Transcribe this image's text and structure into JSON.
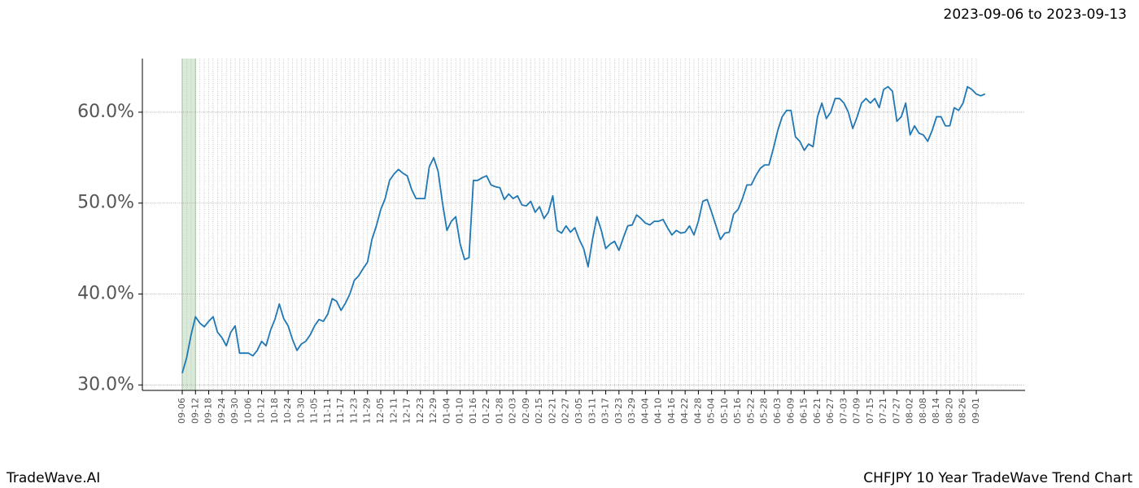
{
  "chart_data": {
    "type": "line",
    "title": "CHFJPY 10 Year TradeWave Trend Chart",
    "date_range": "2023-09-06 to 2023-09-13",
    "brand": "TradeWave.AI",
    "categories": [
      "09-06",
      null,
      null,
      "09-12",
      null,
      null,
      "09-18",
      null,
      null,
      "09-24",
      null,
      null,
      "09-30",
      null,
      null,
      "10-06",
      null,
      null,
      "10-12",
      null,
      null,
      "10-18",
      null,
      null,
      "10-24",
      null,
      null,
      "10-30",
      null,
      null,
      "11-05",
      null,
      null,
      "11-11",
      null,
      null,
      "11-17",
      null,
      null,
      "11-23",
      null,
      null,
      "11-29",
      null,
      null,
      "12-05",
      null,
      null,
      "12-11",
      null,
      null,
      "12-17",
      null,
      null,
      "12-23",
      null,
      null,
      "12-29",
      null,
      null,
      "01-04",
      null,
      null,
      "01-10",
      null,
      null,
      "01-16",
      null,
      null,
      "01-22",
      null,
      null,
      "01-28",
      null,
      null,
      "02-03",
      null,
      null,
      "02-09",
      null,
      null,
      "02-15",
      null,
      null,
      "02-21",
      null,
      null,
      "02-27",
      null,
      null,
      "03-05",
      null,
      null,
      "03-11",
      null,
      null,
      "03-17",
      null,
      null,
      "03-23",
      null,
      null,
      "03-29",
      null,
      null,
      "04-04",
      null,
      null,
      "04-10",
      null,
      null,
      "04-16",
      null,
      null,
      "04-22",
      null,
      null,
      "04-28",
      null,
      null,
      "05-04",
      null,
      null,
      "05-10",
      null,
      null,
      "05-16",
      null,
      null,
      "05-22",
      null,
      null,
      "05-28",
      null,
      null,
      "06-03",
      null,
      null,
      "06-09",
      null,
      null,
      "06-15",
      null,
      null,
      "06-21",
      null,
      null,
      "06-27",
      null,
      null,
      "07-03",
      null,
      null,
      "07-09",
      null,
      null,
      "07-15",
      null,
      null,
      "07-21",
      null,
      null,
      "07-27",
      null,
      null,
      "08-02",
      null,
      null,
      "08-08",
      null,
      null,
      "08-14",
      null,
      null,
      "08-20",
      null,
      null,
      "08-26",
      null,
      null,
      "09-01",
      null,
      null
    ],
    "series": [
      {
        "color": "#1f77b4",
        "values": [
          31.3,
          33,
          35.5,
          37.5,
          36.8,
          36.4,
          37,
          37.5,
          35.8,
          35.2,
          34.3,
          35.8,
          36.5,
          33.5,
          33.5,
          33.5,
          33.2,
          33.8,
          34.8,
          34.3,
          36,
          37.2,
          38.9,
          37.3,
          36.5,
          35,
          33.8,
          34.5,
          34.8,
          35.5,
          36.5,
          37.2,
          37,
          37.8,
          39.5,
          39.2,
          38.2,
          39,
          40,
          41.5,
          42,
          42.8,
          43.5,
          46,
          47.5,
          49.3,
          50.5,
          52.5,
          53.2,
          53.7,
          53.3,
          53,
          51.5,
          50.5,
          50.5,
          50.5,
          54,
          55,
          53.5,
          50,
          47,
          48,
          48.5,
          45.5,
          43.8,
          44,
          52.5,
          52.5,
          52.8,
          53,
          52,
          51.8,
          51.7,
          50.4,
          51,
          50.5,
          50.8,
          49.8,
          49.7,
          50.2,
          49,
          49.6,
          48.3,
          49,
          50.8,
          47,
          46.7,
          47.5,
          46.8,
          47.3,
          46,
          45,
          43,
          46,
          48.5,
          47,
          45,
          45.5,
          45.8,
          44.8,
          46.2,
          47.5,
          47.6,
          48.7,
          48.3,
          47.8,
          47.6,
          48,
          48,
          48.2,
          47.3,
          46.5,
          47,
          46.7,
          46.8,
          47.5,
          46.5,
          48,
          50.2,
          50.4,
          49,
          47.5,
          46,
          46.7,
          46.8,
          48.8,
          49.3,
          50.5,
          52,
          52,
          53,
          53.8,
          54.2,
          54.2,
          56,
          58,
          59.5,
          60.2,
          60.2,
          57.3,
          56.8,
          55.8,
          56.5,
          56.2,
          59.5,
          61,
          59.3,
          60,
          61.5,
          61.5,
          61,
          60,
          58.2,
          59.5,
          61,
          61.5,
          61,
          61.5,
          60.5,
          62.5,
          62.8,
          62.3,
          59,
          59.5,
          61,
          57.5,
          58.5,
          57.7,
          57.5,
          56.8,
          58,
          59.5,
          59.5,
          58.5,
          58.5,
          60.5,
          60.2,
          61,
          62.8,
          62.5,
          62,
          61.8,
          62
        ]
      }
    ],
    "ylim": [
      29.4,
      65.9
    ],
    "yticks": [
      {
        "value": 30,
        "label": "30.0%"
      },
      {
        "value": 40,
        "label": "40.0%"
      },
      {
        "value": 50,
        "label": "50.0%"
      },
      {
        "value": 60,
        "label": "60.0%"
      }
    ],
    "grid": true,
    "highlight": [
      0,
      3
    ],
    "highlight_color": "#d9ead9"
  }
}
